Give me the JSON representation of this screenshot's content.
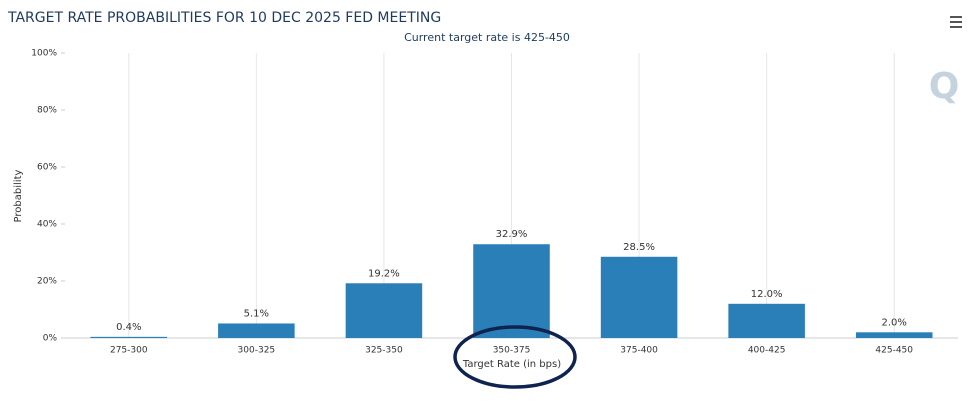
{
  "chart_data": {
    "type": "bar",
    "title": "TARGET RATE PROBABILITIES FOR 10 DEC 2025 FED MEETING",
    "subtitle": "Current target rate is 425-450",
    "x_label": "Target Rate (in bps)",
    "y_label": "Probability",
    "logo": "Q",
    "categories": [
      "275-300",
      "300-325",
      "325-350",
      "350-375",
      "375-400",
      "400-425",
      "425-450"
    ],
    "values": [
      0.4,
      5.1,
      19.2,
      32.9,
      28.5,
      12.0,
      2.0
    ],
    "value_labels": [
      "0.4%",
      "5.1%",
      "19.2%",
      "32.9%",
      "28.5%",
      "12.0%",
      "2.0%"
    ],
    "color": "#2b7fb8",
    "ylim": [
      0,
      100
    ],
    "yticks": [
      {
        "value": 0,
        "label": "0%"
      },
      {
        "value": 20,
        "label": "20%"
      },
      {
        "value": 40,
        "label": "40%"
      },
      {
        "value": 60,
        "label": "60%"
      },
      {
        "value": 80,
        "label": "80%"
      },
      {
        "value": 100,
        "label": "100%"
      }
    ],
    "grid": true
  }
}
